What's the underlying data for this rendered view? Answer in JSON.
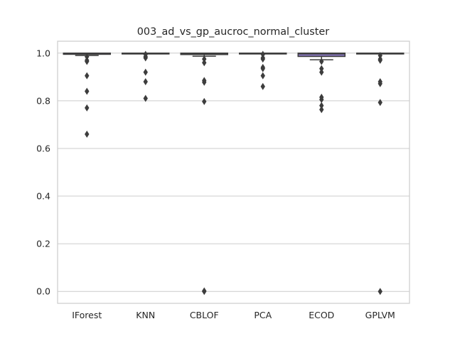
{
  "chart_data": {
    "type": "box",
    "title": "003_ad_vs_gp_aucroc_normal_cluster",
    "xlabel": "",
    "ylabel": "",
    "ylim": [
      -0.05,
      1.05
    ],
    "yticks": [
      0.0,
      0.2,
      0.4,
      0.6,
      0.8,
      1.0
    ],
    "ytick_labels": [
      "0.0",
      "0.2",
      "0.4",
      "0.6",
      "0.8",
      "1.0"
    ],
    "grid": "horizontal",
    "legend": "none",
    "categories": [
      "IForest",
      "KNN",
      "CBLOF",
      "PCA",
      "ECOD",
      "GPLVM"
    ],
    "box_color": "#8172b3",
    "line_color": "#3d3d3d",
    "boxes": [
      {
        "name": "IForest",
        "whisker_low": 0.99,
        "q1": 0.995,
        "median": 0.999,
        "q3": 1.0,
        "whisker_high": 1.0,
        "outliers": [
          0.985,
          0.97,
          0.965,
          0.905,
          0.84,
          0.77,
          0.66
        ]
      },
      {
        "name": "KNN",
        "whisker_low": 0.998,
        "q1": 0.999,
        "median": 1.0,
        "q3": 1.0,
        "whisker_high": 1.0,
        "outliers": [
          0.995,
          0.985,
          0.98,
          0.92,
          0.88,
          0.81
        ]
      },
      {
        "name": "CBLOF",
        "whisker_low": 0.987,
        "q1": 0.994,
        "median": 0.998,
        "q3": 1.0,
        "whisker_high": 1.0,
        "outliers": [
          0.975,
          0.96,
          0.885,
          0.878,
          0.797,
          0.002,
          0.0
        ]
      },
      {
        "name": "PCA",
        "whisker_low": 0.999,
        "q1": 1.0,
        "median": 1.0,
        "q3": 1.0,
        "whisker_high": 1.0,
        "outliers": [
          0.995,
          0.98,
          0.975,
          0.94,
          0.935,
          0.905,
          0.86
        ]
      },
      {
        "name": "ECOD",
        "whisker_low": 0.972,
        "q1": 0.986,
        "median": 0.997,
        "q3": 1.0,
        "whisker_high": 1.0,
        "outliers": [
          0.965,
          0.935,
          0.92,
          0.815,
          0.805,
          0.78,
          0.763
        ]
      },
      {
        "name": "GPLVM",
        "whisker_low": 0.999,
        "q1": 0.999,
        "median": 1.0,
        "q3": 1.0,
        "whisker_high": 1.0,
        "outliers": [
          0.99,
          0.975,
          0.97,
          0.88,
          0.872,
          0.793,
          0.0
        ]
      }
    ]
  }
}
